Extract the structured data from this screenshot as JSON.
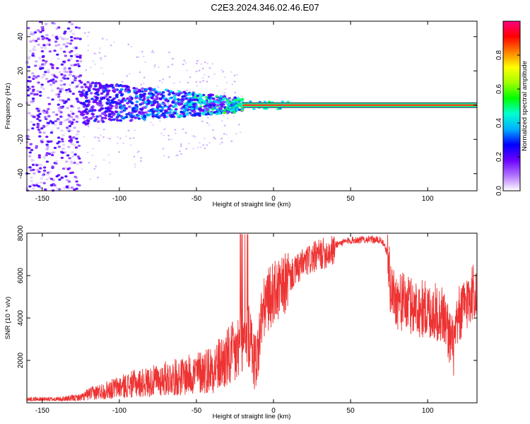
{
  "title": "C2E3.2024.346.02.46.E07",
  "chart_data": [
    {
      "type": "heatmap",
      "xlabel": "Height of straight line (km)",
      "ylabel": "Frequency (Hz)",
      "xlim": [
        -160,
        132
      ],
      "ylim": [
        -50,
        49
      ],
      "xticks": [
        -150,
        -100,
        -50,
        0,
        50,
        100
      ],
      "yticks": [
        -40,
        -20,
        0,
        20,
        40
      ],
      "colorbar": {
        "label": "Normalized spectral amplitude",
        "range": [
          0,
          1
        ],
        "ticks": [
          "0.0",
          "0.2",
          "0.4",
          "0.6",
          "0.8"
        ],
        "colors": [
          "#ffffff",
          "#b070ff",
          "#6a00ff",
          "#0000ff",
          "#00b0ff",
          "#00ffd0",
          "#00ff00",
          "#a0ff00",
          "#ffff00",
          "#ff8000",
          "#ff0000",
          "#ff0080"
        ]
      },
      "regions": [
        {
          "x": [
            -160,
            -125
          ],
          "frequency_spread": [
            -50,
            49
          ],
          "amplitude": "low"
        },
        {
          "x": [
            -125,
            -20
          ],
          "frequency_spread": [
            -12,
            15
          ],
          "amplitude": "medium"
        },
        {
          "x": [
            -20,
            132
          ],
          "frequency": 0,
          "amplitude": "high"
        }
      ]
    },
    {
      "type": "line",
      "xlabel": "Height of straight line (km)",
      "ylabel": "SNR (10 * v/v)",
      "xlim": [
        -160,
        132
      ],
      "ylim": [
        0,
        8000
      ],
      "xticks": [
        -150,
        -100,
        -50,
        0,
        50,
        100
      ],
      "yticks": [
        2000,
        4000,
        6000,
        8000
      ],
      "color": "#ee3333",
      "series": [
        {
          "x": [
            -160,
            -140,
            -125,
            -120,
            -110,
            -100,
            -90,
            -80,
            -70,
            -60,
            -50,
            -40,
            -35,
            -30,
            -25,
            -20,
            -17,
            -15,
            -12,
            -10,
            -8,
            -5,
            0,
            5,
            10,
            20,
            30,
            40,
            50,
            60,
            70,
            74,
            76,
            80,
            90,
            100,
            110,
            117,
            120,
            130,
            132
          ],
          "y": [
            200,
            200,
            300,
            500,
            700,
            900,
            1100,
            1200,
            1400,
            1500,
            1700,
            2000,
            2200,
            2500,
            2800,
            3300,
            3600,
            3200,
            2200,
            2700,
            4200,
            5000,
            5500,
            5600,
            6200,
            6900,
            7300,
            7500,
            7700,
            7750,
            7700,
            7100,
            5500,
            5000,
            4700,
            4500,
            4300,
            2700,
            4200,
            5500,
            5000
          ]
        }
      ]
    }
  ]
}
